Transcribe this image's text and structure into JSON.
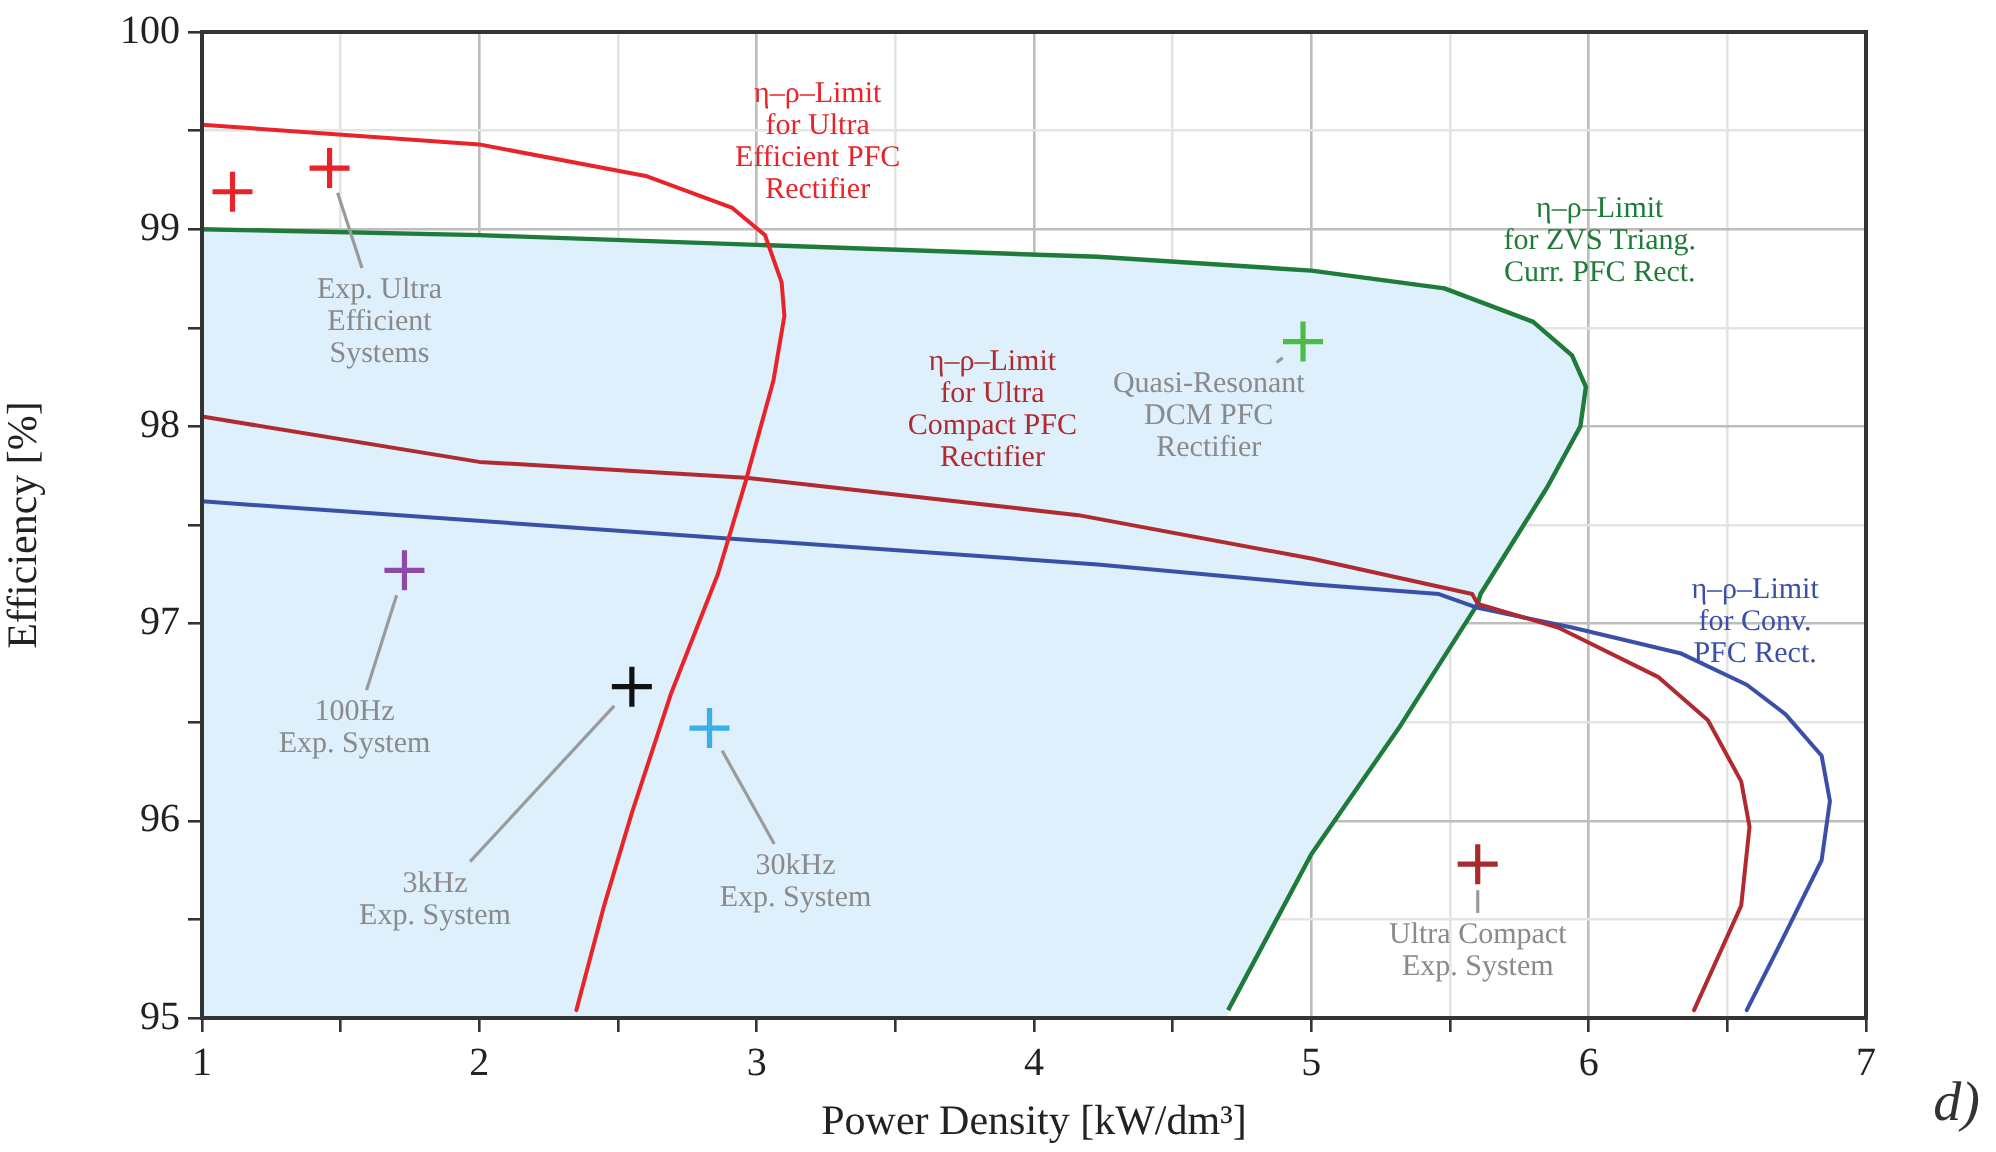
{
  "chart_data": {
    "type": "line",
    "xlabel": "Power Density [kW/dm³]",
    "ylabel": "Efficiency [%]",
    "xlim": [
      1,
      7
    ],
    "ylim": [
      95,
      100
    ],
    "xticks": [
      1,
      {
        "value": 1.5,
        "label": null
      },
      2,
      {
        "value": 2.5,
        "label": null
      },
      3,
      {
        "value": 3.5,
        "label": null
      },
      4,
      {
        "value": 4.5,
        "label": null
      },
      5,
      {
        "value": 5.5,
        "label": null
      },
      6,
      {
        "value": 6.5,
        "label": null
      },
      7
    ],
    "yticks": [
      95,
      {
        "value": 95.5,
        "label": null
      },
      96,
      {
        "value": 96.5,
        "label": null
      },
      97,
      {
        "value": 97.5,
        "label": null
      },
      98,
      {
        "value": 98.5,
        "label": null
      },
      99,
      {
        "value": 99.5,
        "label": null
      },
      100
    ],
    "grid": true,
    "marker": "cross",
    "series": [
      {
        "type": "area",
        "marker": "none",
        "name": "η–ρ–Limit\nfor ZVS Triang.\nCurr. PFC Rect.",
        "color": "#1e7b3a",
        "x": [
          1,
          2,
          4.23,
          5.0,
          5.48,
          5.8,
          5.94,
          5.99,
          5.97,
          5.85,
          5.61,
          5.6,
          5.32,
          5.0,
          4.7
        ],
        "values": [
          99.0,
          98.97,
          98.86,
          98.79,
          98.7,
          98.53,
          98.36,
          98.2,
          98.0,
          97.69,
          97.15,
          97.1,
          96.48,
          95.83,
          95.04
        ]
      },
      {
        "type": "line",
        "marker": "none",
        "name": "η–ρ–Limit\nfor Ultra\nEfficient PFC\nRectifier",
        "color": "#e8232a",
        "x": [
          1,
          2,
          2.6,
          2.91,
          3.03,
          3.09,
          3.1,
          3.06,
          2.96,
          2.86,
          2.69,
          2.55,
          2.45,
          2.35
        ],
        "values": [
          99.53,
          99.43,
          99.27,
          99.11,
          98.97,
          98.73,
          98.56,
          98.23,
          97.72,
          97.25,
          96.64,
          96.04,
          95.57,
          95.04
        ]
      },
      {
        "type": "line",
        "marker": "none",
        "name": "η–ρ–Limit\nfor Ultra\nCompact PFC\nRectifier",
        "color": "#b02a30",
        "x": [
          1,
          2,
          2.96,
          4.16,
          5.0,
          5.58,
          5.6,
          5.89,
          6.25,
          6.43,
          6.55,
          6.58,
          6.55,
          6.38
        ],
        "values": [
          98.05,
          97.82,
          97.74,
          97.55,
          97.33,
          97.15,
          97.1,
          96.98,
          96.73,
          96.51,
          96.2,
          95.97,
          95.57,
          95.04
        ]
      },
      {
        "type": "line",
        "marker": "none",
        "name": "η–ρ–Limit\nfor Conv.\nPFC Rect.",
        "color": "#3a4fa8",
        "x": [
          1,
          4.23,
          5.0,
          5.46,
          5.6,
          5.94,
          6.33,
          6.57,
          6.71,
          6.84,
          6.87,
          6.84,
          6.71,
          6.57
        ],
        "values": [
          97.62,
          97.3,
          97.2,
          97.15,
          97.08,
          96.98,
          96.85,
          96.69,
          96.54,
          96.33,
          96.1,
          95.8,
          95.43,
          95.04
        ]
      },
      {
        "type": "scatter",
        "name": "Exp. Ultra\nEfficient\nSystems",
        "color": "#e8232a",
        "x": [
          1.11,
          1.46
        ],
        "values": [
          99.19,
          99.31
        ]
      },
      {
        "type": "scatter",
        "name": "100Hz\nExp. System",
        "color": "#8e4aa8",
        "x": [
          1.73
        ],
        "values": [
          97.27
        ]
      },
      {
        "type": "scatter",
        "name": "3kHz\nExp. System",
        "color": "#111111",
        "x": [
          2.55
        ],
        "values": [
          96.68
        ]
      },
      {
        "type": "scatter",
        "name": "30kHz\nExp. System",
        "color": "#3bb0e8",
        "x": [
          2.83
        ],
        "values": [
          96.47
        ]
      },
      {
        "type": "scatter",
        "name": "Quasi-Resonant\nDCM PFC\nRectifier",
        "color": "#4cbb47",
        "x": [
          4.97
        ],
        "values": [
          98.43
        ]
      },
      {
        "type": "scatter",
        "name": "Ultra Compact\nExp. System",
        "color": "#a82a2e",
        "x": [
          5.6
        ],
        "values": [
          95.78
        ]
      }
    ],
    "annotations": [
      "d)"
    ]
  }
}
